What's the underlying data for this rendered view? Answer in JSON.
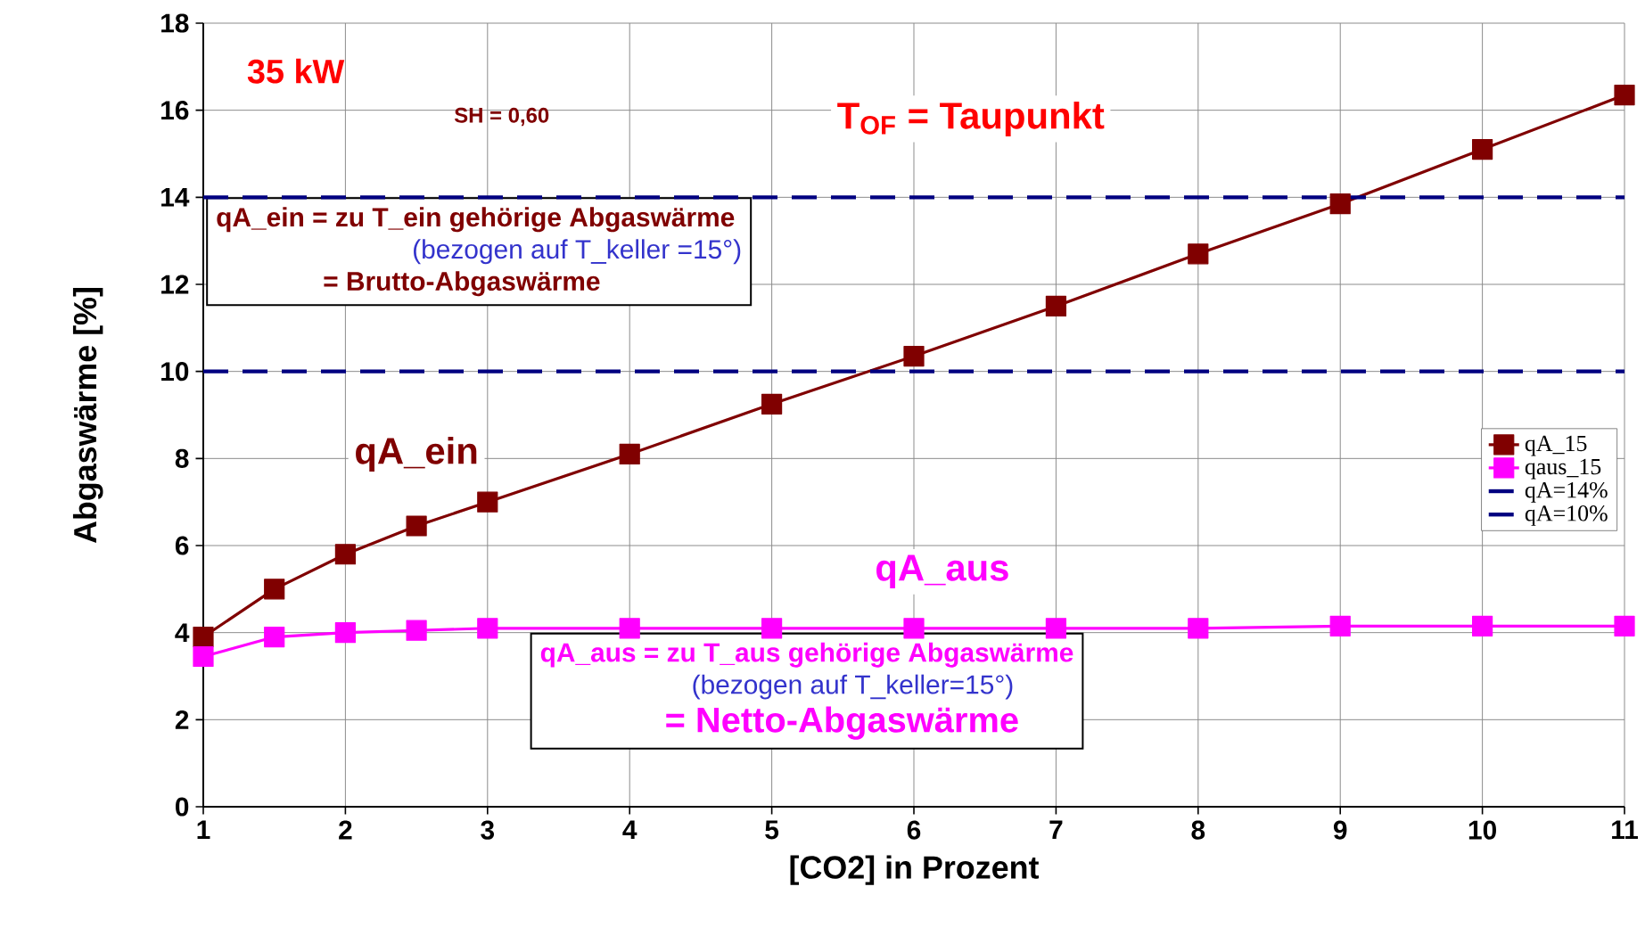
{
  "chart_data": {
    "type": "line",
    "xlabel": "[CO2] in Prozent",
    "ylabel": "Abgaswärme [%]",
    "xlim": [
      1,
      11
    ],
    "ylim": [
      0,
      18
    ],
    "xticks": [
      1,
      2,
      3,
      4,
      5,
      6,
      7,
      8,
      9,
      10,
      11
    ],
    "yticks": [
      0,
      2,
      4,
      6,
      8,
      10,
      12,
      14,
      16,
      18
    ],
    "grid": true,
    "legend": "right",
    "series": [
      {
        "name": "qA_15",
        "color": "#800000",
        "marker": "square",
        "x": [
          1,
          1.5,
          2,
          2.5,
          3,
          4,
          5,
          6,
          7,
          8,
          9,
          10,
          11
        ],
        "values": [
          3.9,
          5.0,
          5.8,
          6.45,
          7.0,
          8.1,
          9.25,
          10.35,
          11.5,
          12.7,
          13.85,
          15.1,
          16.35
        ]
      },
      {
        "name": "qaus_15",
        "color": "#ff00ff",
        "marker": "square",
        "x": [
          1,
          1.5,
          2,
          2.5,
          3,
          4,
          5,
          6,
          7,
          8,
          9,
          10,
          11
        ],
        "values": [
          3.45,
          3.9,
          4.0,
          4.05,
          4.1,
          4.1,
          4.1,
          4.1,
          4.1,
          4.1,
          4.15,
          4.15,
          4.15
        ]
      },
      {
        "name": "qA=14%",
        "color": "#000080",
        "marker": "none",
        "line_style": "dashed",
        "x": [
          1,
          11
        ],
        "values": [
          14,
          14
        ]
      },
      {
        "name": "qA=10%",
        "color": "#000080",
        "marker": "none",
        "line_style": "dashed",
        "x": [
          1,
          11
        ],
        "values": [
          10,
          10
        ]
      }
    ],
    "annotations": [
      "35 kW",
      "SH = 0,60",
      "T$_{OF}$ = Taupunkt",
      "qA_ein =  zu T_ein gehörige Abgaswärme",
      "(bezogen auf T_keller =15°)",
      "=  Brutto-Abgaswärme",
      "qA_ein",
      "qA_aus",
      "qA_aus =  zu T_aus gehörige Abgaswärme",
      "(bezogen auf T_keller=15°)",
      "= Netto-Abgaswärme"
    ]
  }
}
